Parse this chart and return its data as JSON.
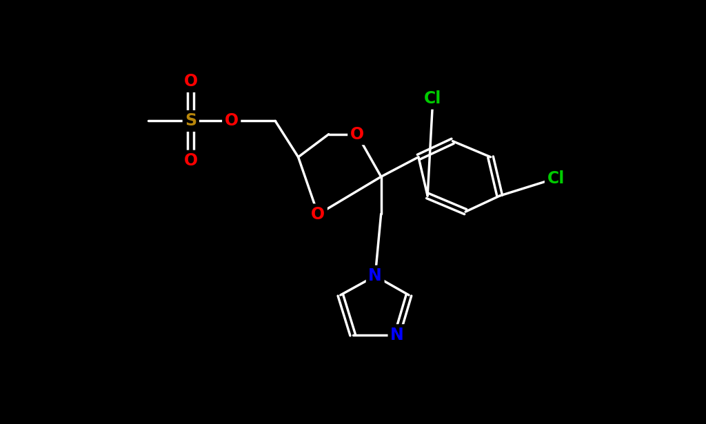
{
  "bg_color": "#000000",
  "bond_color": "#ffffff",
  "bond_width": 2.5,
  "atom_colors": {
    "O": "#ff0000",
    "S": "#b8860b",
    "N": "#0000ff",
    "Cl": "#00cc00",
    "C": "#ffffff"
  },
  "font_size_atom": 17,
  "font_size_cl": 17
}
